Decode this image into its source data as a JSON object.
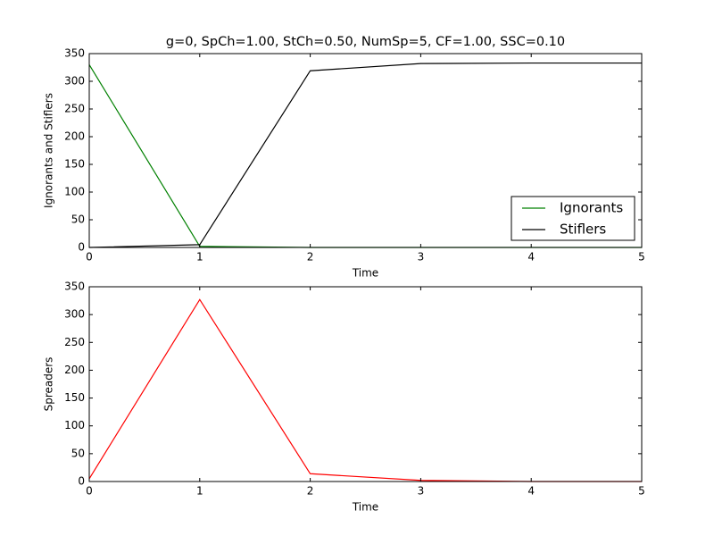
{
  "chart_data": [
    {
      "type": "line",
      "title": "g=0, SpCh=1.00, StCh=0.50, NumSp=5, CF=1.00, SSC=0.10",
      "xlabel": "Time",
      "ylabel": "Ignorants and Stiflers",
      "x": [
        0,
        1,
        2,
        3,
        4,
        5
      ],
      "series": [
        {
          "name": "Ignorants",
          "color": "#008000",
          "values": [
            330,
            2,
            0,
            0,
            0,
            0
          ]
        },
        {
          "name": "Stiflers",
          "color": "#000000",
          "values": [
            0,
            5,
            319,
            332,
            333,
            333
          ]
        }
      ],
      "xlim": [
        0,
        5
      ],
      "xticks": [
        0,
        1,
        2,
        3,
        4,
        5
      ],
      "ylim": [
        0,
        350
      ],
      "yticks": [
        0,
        50,
        100,
        150,
        200,
        250,
        300,
        350
      ],
      "legend": "lower right"
    },
    {
      "type": "line",
      "xlabel": "Time",
      "ylabel": "Spreaders",
      "x": [
        0,
        1,
        2,
        3,
        4,
        5
      ],
      "series": [
        {
          "color": "#ff0000",
          "values": [
            5,
            327,
            14,
            2,
            0,
            0
          ]
        }
      ],
      "xlim": [
        0,
        5
      ],
      "xticks": [
        0,
        1,
        2,
        3,
        4,
        5
      ],
      "ylim": [
        0,
        350
      ],
      "yticks": [
        0,
        50,
        100,
        150,
        200,
        250,
        300,
        350
      ]
    }
  ]
}
